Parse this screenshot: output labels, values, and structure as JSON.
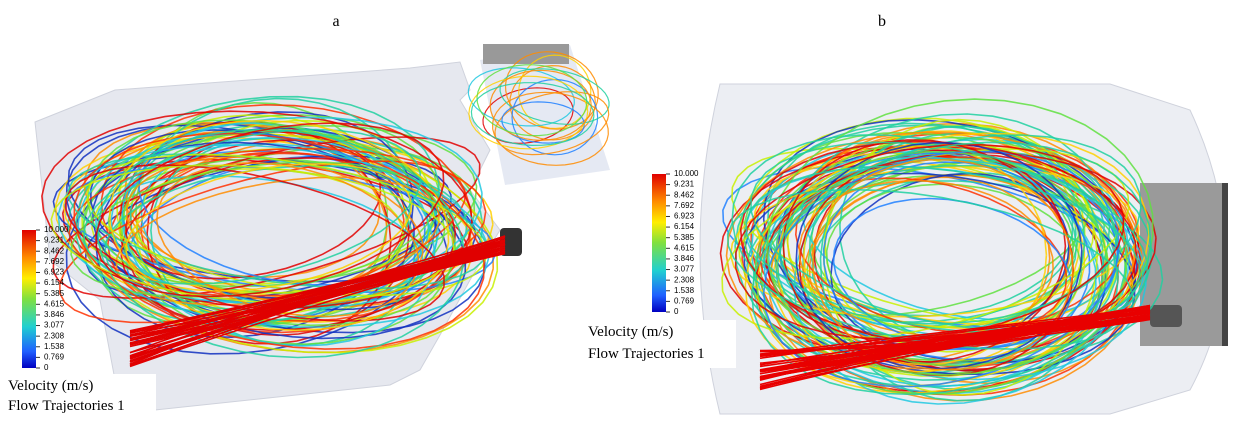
{
  "panels": [
    {
      "label": "a",
      "legend": {
        "ticks": [
          "10.000",
          "9.231",
          "8.462",
          "7.692",
          "6.923",
          "6.154",
          "5.385",
          "4.615",
          "3.846",
          "3.077",
          "2.308",
          "1.538",
          "0.769",
          "0"
        ],
        "title": "Velocity (m/s)",
        "subtitle": "Flow Trajectories 1"
      }
    },
    {
      "label": "b",
      "legend": {
        "ticks": [
          "10.000",
          "9.231",
          "8.462",
          "7.692",
          "6.923",
          "6.154",
          "5.385",
          "4.615",
          "3.846",
          "3.077",
          "2.308",
          "1.538",
          "0.769",
          "0"
        ],
        "title": "Velocity (m/s)",
        "subtitle": "Flow Trajectories 1"
      }
    }
  ]
}
